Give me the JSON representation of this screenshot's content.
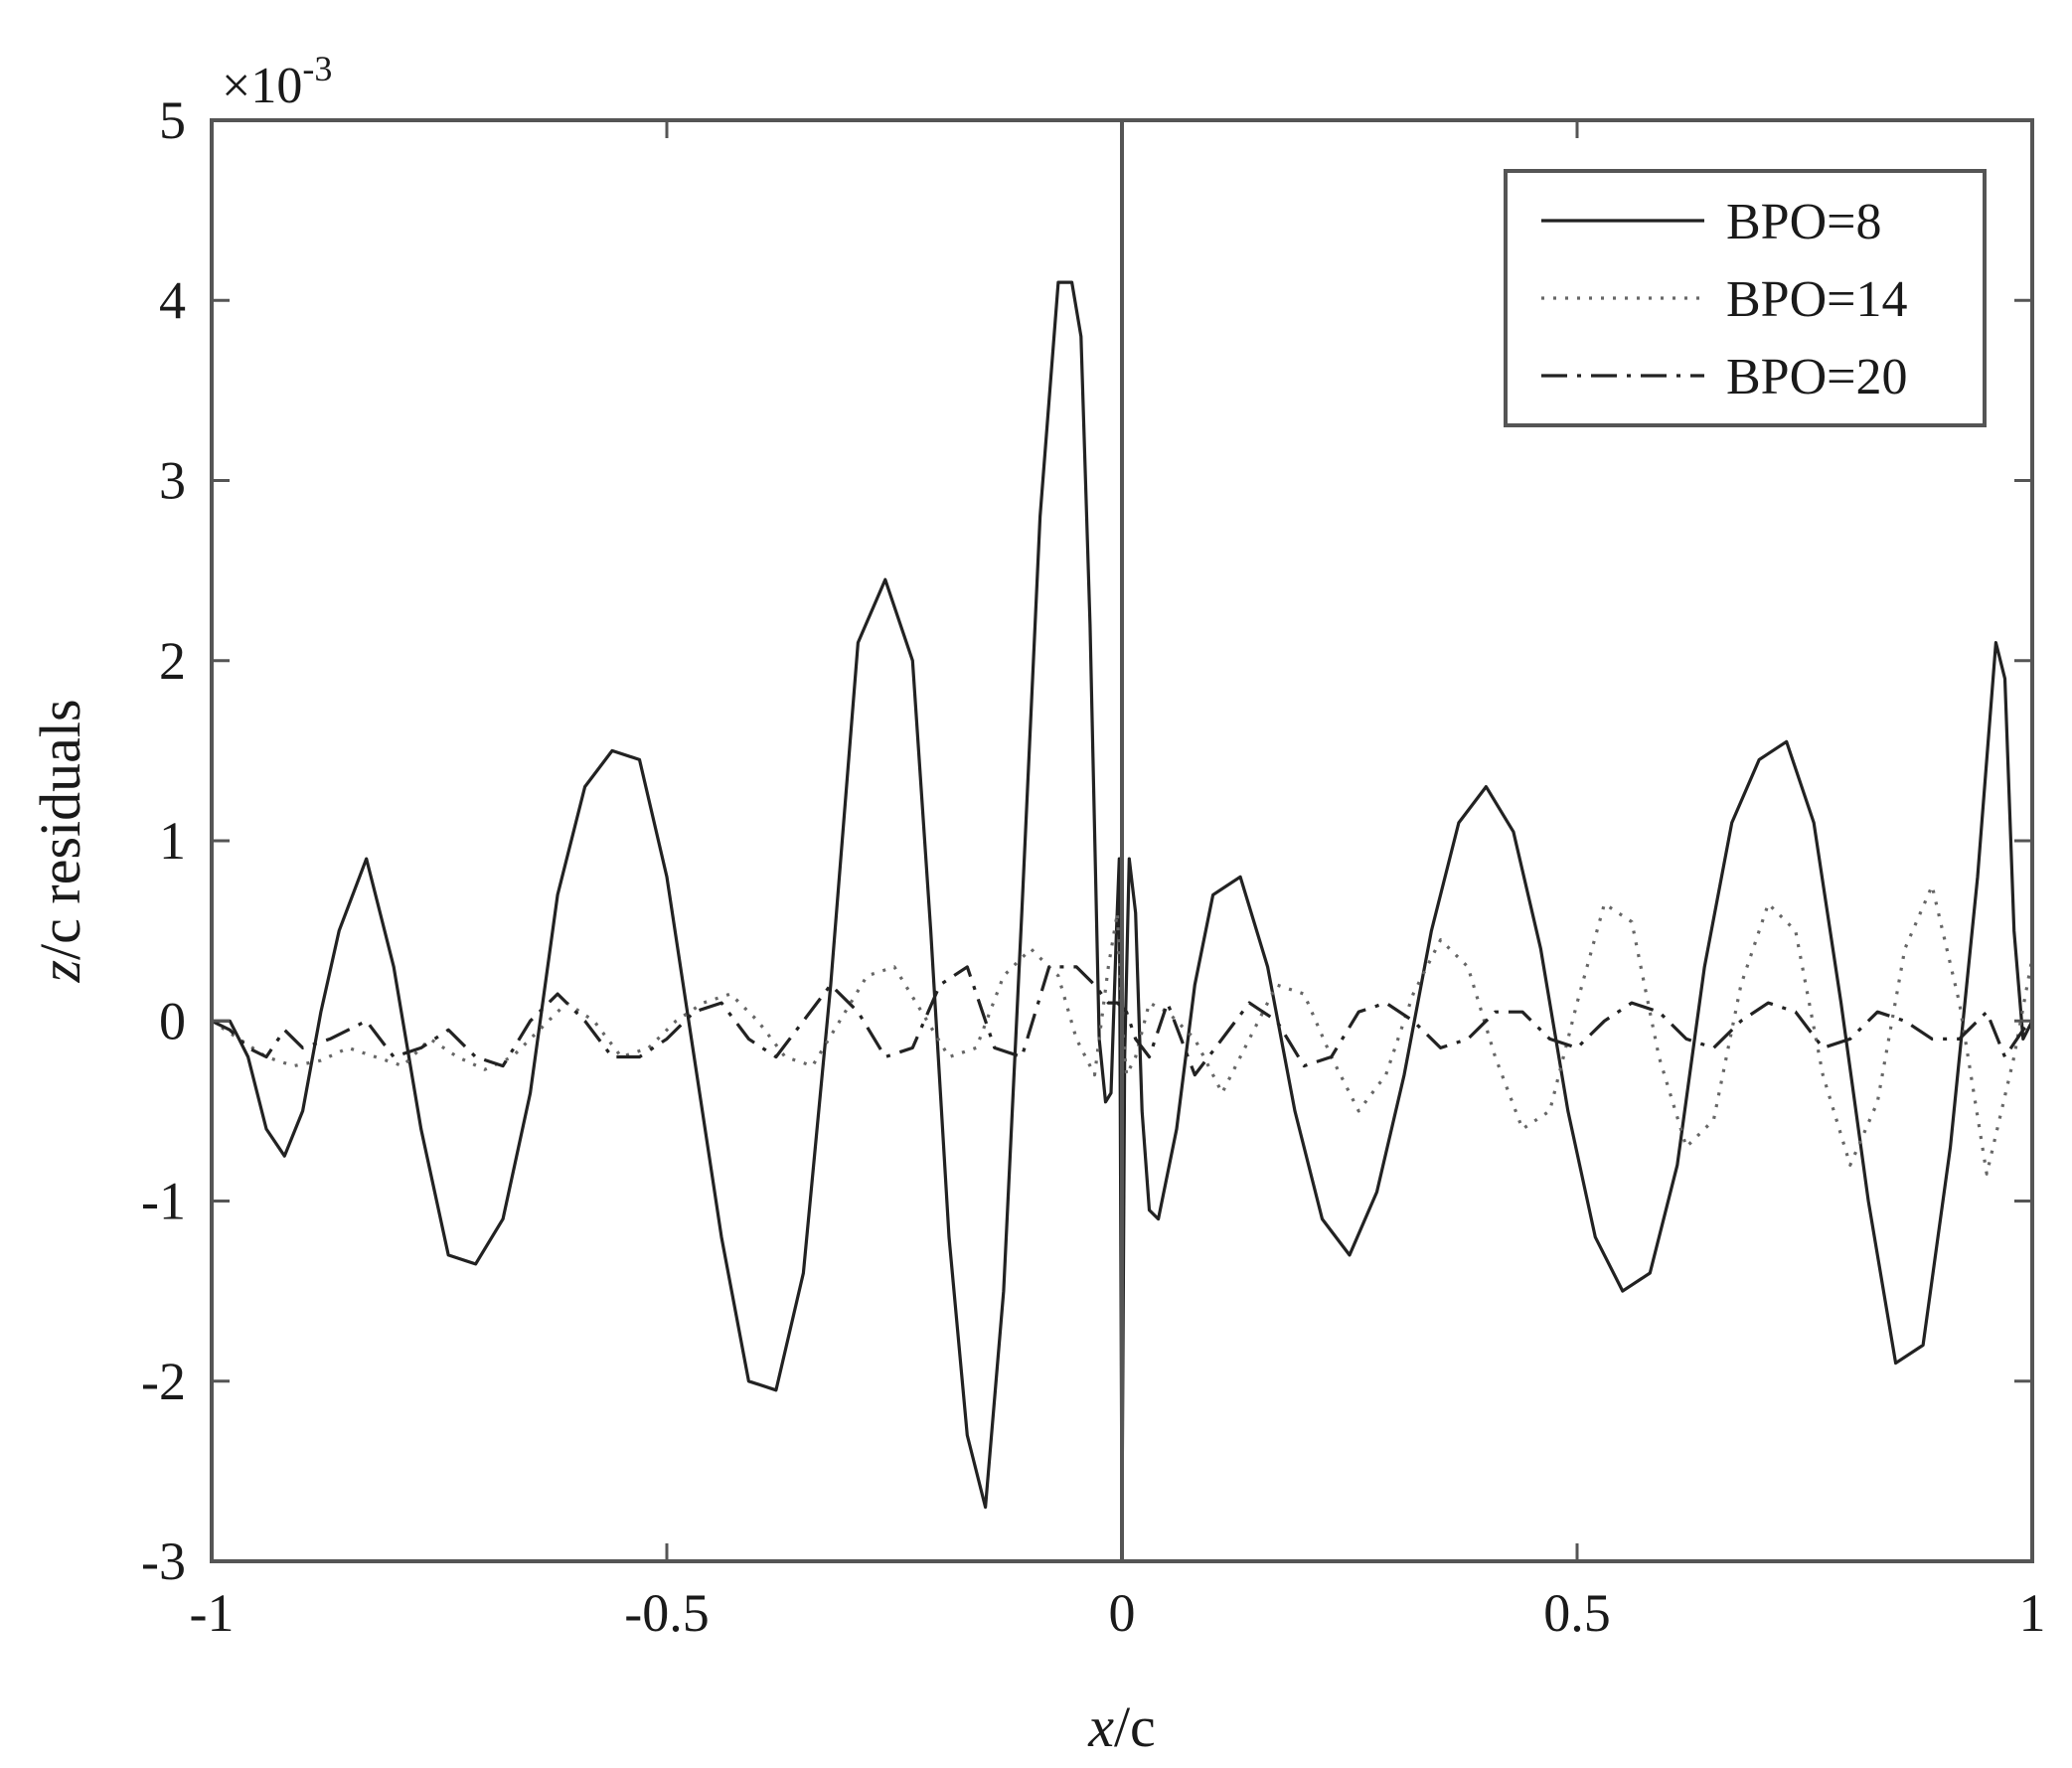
{
  "chart_data": {
    "type": "line",
    "title": "",
    "xlabel_parts": {
      "italic": "x",
      "rest": "/c"
    },
    "ylabel_parts": {
      "italic": "z",
      "rest": "/c residuals"
    },
    "xlim": [
      -1,
      1
    ],
    "ylim": [
      -3,
      5
    ],
    "y_multiplier": {
      "base": "×10",
      "exponent": "-3"
    },
    "x_ticks": [
      -1,
      -0.5,
      0,
      0.5,
      1
    ],
    "x_tick_labels": [
      "-1",
      "-0.5",
      "0",
      "0.5",
      "1"
    ],
    "y_ticks": [
      -3,
      -2,
      -1,
      0,
      1,
      2,
      3,
      4,
      5
    ],
    "y_tick_labels": [
      "-3",
      "-2",
      "-1",
      "0",
      "1",
      "2",
      "3",
      "4",
      "5"
    ],
    "grid": false,
    "legend_position": "top-right",
    "reference_lines": [
      {
        "axis": "x",
        "value": 0
      }
    ],
    "colors": {
      "axes": "#555555",
      "series": "#222222",
      "dotted_series": "#666666"
    },
    "series": [
      {
        "name": "BPO=8",
        "dash": "solid",
        "x": [
          -1,
          -0.98,
          -0.97,
          -0.96,
          -0.94,
          -0.92,
          -0.9,
          -0.88,
          -0.86,
          -0.83,
          -0.8,
          -0.77,
          -0.74,
          -0.71,
          -0.68,
          -0.65,
          -0.62,
          -0.59,
          -0.56,
          -0.53,
          -0.5,
          -0.47,
          -0.44,
          -0.41,
          -0.38,
          -0.35,
          -0.32,
          -0.29,
          -0.26,
          -0.23,
          -0.21,
          -0.19,
          -0.17,
          -0.15,
          -0.13,
          -0.11,
          -0.09,
          -0.07,
          -0.055,
          -0.045,
          -0.035,
          -0.025,
          -0.018,
          -0.012,
          -0.006,
          -0.003,
          0,
          0.003,
          0.008,
          0.015,
          0.022,
          0.03,
          0.04,
          0.06,
          0.08,
          0.1,
          0.13,
          0.16,
          0.19,
          0.22,
          0.25,
          0.28,
          0.31,
          0.34,
          0.37,
          0.4,
          0.43,
          0.46,
          0.49,
          0.52,
          0.55,
          0.58,
          0.61,
          0.64,
          0.67,
          0.7,
          0.73,
          0.76,
          0.79,
          0.82,
          0.85,
          0.88,
          0.91,
          0.94,
          0.96,
          0.97,
          0.98,
          0.99,
          1
        ],
        "y": [
          0,
          0,
          -0.1,
          -0.2,
          -0.6,
          -0.75,
          -0.5,
          0.05,
          0.5,
          0.9,
          0.3,
          -0.6,
          -1.3,
          -1.35,
          -1.1,
          -0.4,
          0.7,
          1.3,
          1.5,
          1.45,
          0.8,
          -0.2,
          -1.2,
          -2.0,
          -2.05,
          -1.4,
          0.2,
          2.1,
          2.45,
          2.0,
          0.5,
          -1.2,
          -2.3,
          -2.7,
          -1.5,
          0.6,
          2.8,
          4.1,
          4.1,
          3.8,
          2.2,
          -0.1,
          -0.45,
          -0.4,
          0.5,
          0.9,
          -2.8,
          -0.2,
          0.9,
          0.6,
          -0.5,
          -1.05,
          -1.1,
          -0.6,
          0.2,
          0.7,
          0.8,
          0.3,
          -0.5,
          -1.1,
          -1.3,
          -0.95,
          -0.3,
          0.5,
          1.1,
          1.3,
          1.05,
          0.4,
          -0.5,
          -1.2,
          -1.5,
          -1.4,
          -0.8,
          0.3,
          1.1,
          1.45,
          1.55,
          1.1,
          0.1,
          -1.0,
          -1.9,
          -1.8,
          -0.7,
          0.8,
          2.1,
          1.9,
          0.5,
          -0.1,
          0
        ]
      },
      {
        "name": "BPO=14",
        "dash": "dotted",
        "x": [
          -1,
          -0.97,
          -0.94,
          -0.91,
          -0.88,
          -0.85,
          -0.82,
          -0.79,
          -0.76,
          -0.73,
          -0.7,
          -0.67,
          -0.64,
          -0.61,
          -0.58,
          -0.55,
          -0.52,
          -0.49,
          -0.46,
          -0.43,
          -0.4,
          -0.37,
          -0.34,
          -0.31,
          -0.28,
          -0.25,
          -0.22,
          -0.19,
          -0.16,
          -0.13,
          -0.1,
          -0.07,
          -0.05,
          -0.03,
          -0.015,
          -0.005,
          0,
          0.005,
          0.015,
          0.03,
          0.05,
          0.08,
          0.11,
          0.14,
          0.17,
          0.2,
          0.23,
          0.26,
          0.29,
          0.32,
          0.35,
          0.38,
          0.41,
          0.44,
          0.47,
          0.5,
          0.53,
          0.56,
          0.59,
          0.62,
          0.65,
          0.68,
          0.71,
          0.74,
          0.77,
          0.8,
          0.83,
          0.86,
          0.89,
          0.92,
          0.95,
          0.98,
          1
        ],
        "y": [
          0,
          -0.1,
          -0.2,
          -0.25,
          -0.22,
          -0.15,
          -0.2,
          -0.25,
          -0.1,
          -0.2,
          -0.27,
          -0.2,
          -0.05,
          0.1,
          0.0,
          -0.2,
          -0.15,
          0.0,
          0.1,
          0.15,
          0.0,
          -0.2,
          -0.25,
          0.0,
          0.25,
          0.3,
          0.05,
          -0.2,
          -0.15,
          0.25,
          0.4,
          0.25,
          -0.1,
          -0.3,
          0.3,
          0.6,
          0.0,
          -0.3,
          -0.2,
          0.1,
          0.05,
          -0.1,
          -0.4,
          -0.1,
          0.2,
          0.15,
          -0.2,
          -0.5,
          -0.3,
          0.15,
          0.45,
          0.3,
          -0.2,
          -0.6,
          -0.5,
          0.1,
          0.65,
          0.55,
          -0.2,
          -0.7,
          -0.55,
          0.2,
          0.65,
          0.5,
          -0.3,
          -0.8,
          -0.45,
          0.4,
          0.75,
          0.1,
          -0.85,
          -0.2,
          0.35
        ]
      },
      {
        "name": "BPO=20",
        "dash": "dash-dot",
        "x": [
          -1,
          -0.98,
          -0.96,
          -0.94,
          -0.92,
          -0.9,
          -0.87,
          -0.83,
          -0.8,
          -0.77,
          -0.74,
          -0.71,
          -0.68,
          -0.65,
          -0.62,
          -0.59,
          -0.56,
          -0.53,
          -0.5,
          -0.47,
          -0.44,
          -0.41,
          -0.38,
          -0.35,
          -0.32,
          -0.29,
          -0.26,
          -0.23,
          -0.2,
          -0.17,
          -0.14,
          -0.11,
          -0.08,
          -0.05,
          -0.03,
          -0.015,
          -0.005,
          0.005,
          0.015,
          0.03,
          0.05,
          0.08,
          0.11,
          0.14,
          0.17,
          0.2,
          0.23,
          0.26,
          0.29,
          0.32,
          0.35,
          0.38,
          0.41,
          0.44,
          0.47,
          0.5,
          0.53,
          0.56,
          0.59,
          0.62,
          0.65,
          0.68,
          0.71,
          0.74,
          0.77,
          0.8,
          0.83,
          0.86,
          0.89,
          0.92,
          0.95,
          0.97,
          0.99,
          1
        ],
        "y": [
          0,
          -0.05,
          -0.15,
          -0.2,
          -0.05,
          -0.15,
          -0.1,
          0.0,
          -0.2,
          -0.15,
          -0.05,
          -0.2,
          -0.25,
          0.0,
          0.15,
          0.0,
          -0.2,
          -0.2,
          -0.1,
          0.05,
          0.1,
          -0.1,
          -0.2,
          0.0,
          0.2,
          0.05,
          -0.2,
          -0.15,
          0.2,
          0.3,
          -0.15,
          -0.2,
          0.3,
          0.3,
          0.2,
          0.1,
          0.1,
          0.05,
          -0.1,
          -0.2,
          0.1,
          -0.3,
          -0.1,
          0.1,
          0.0,
          -0.25,
          -0.2,
          0.05,
          0.1,
          0.0,
          -0.15,
          -0.1,
          0.05,
          0.05,
          -0.1,
          -0.15,
          0.0,
          0.1,
          0.05,
          -0.1,
          -0.15,
          0.0,
          0.1,
          0.05,
          -0.15,
          -0.1,
          0.05,
          0.0,
          -0.1,
          -0.1,
          0.05,
          -0.2,
          -0.05,
          0.0
        ]
      }
    ]
  }
}
